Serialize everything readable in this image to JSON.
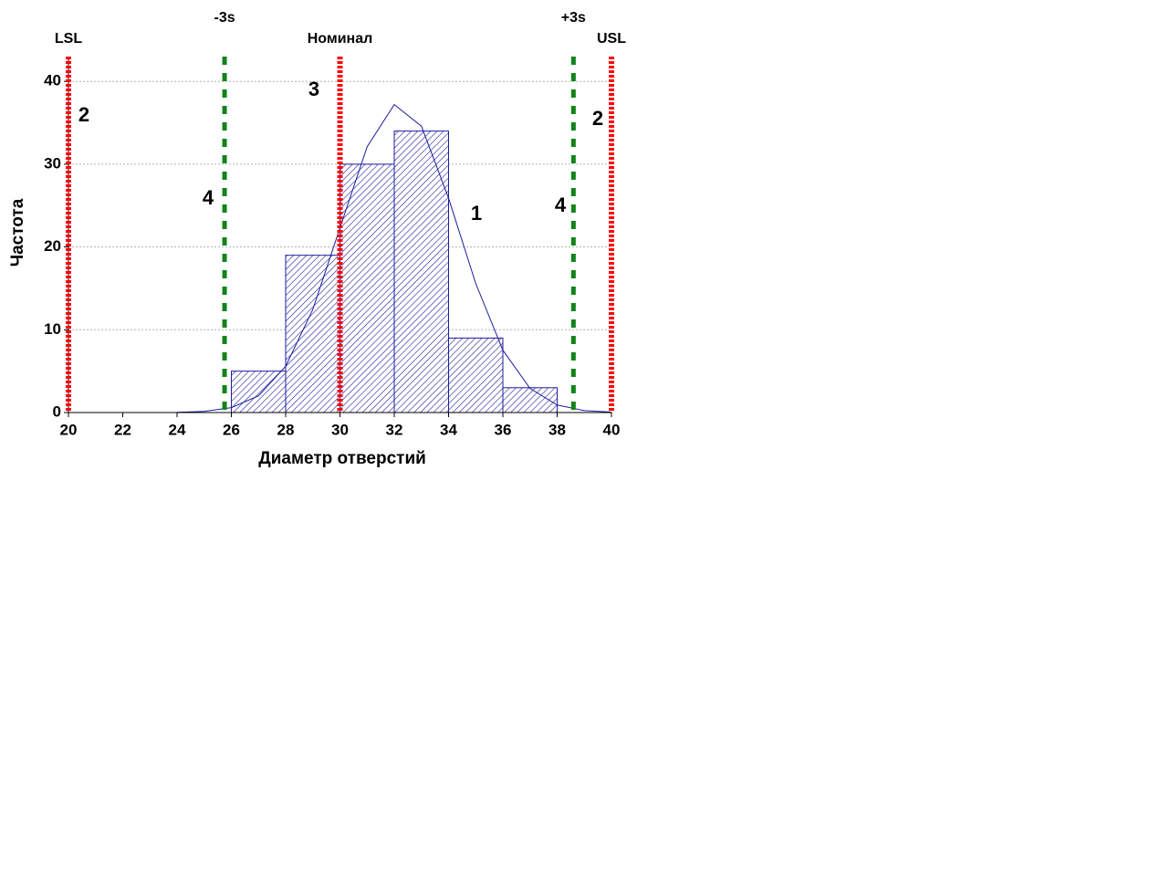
{
  "chart_data": {
    "type": "histogram",
    "x_label": "Диаметр отверстий",
    "y_label": "Частота",
    "bins": [
      26,
      28,
      30,
      32,
      34,
      36,
      38
    ],
    "values": [
      5,
      19,
      30,
      34,
      9,
      3
    ],
    "color": "#1c1c9c",
    "curve": {
      "x": [
        24,
        25,
        26,
        27,
        28,
        29,
        30,
        31,
        32,
        33,
        34,
        35,
        36,
        37,
        38,
        39,
        40
      ],
      "values": [
        0.03,
        0.14,
        0.59,
        2.01,
        5.59,
        12.45,
        22.3,
        32.1,
        37.2,
        34.6,
        25.9,
        15.6,
        7.53,
        2.92,
        0.91,
        0.23,
        0.05
      ],
      "color": "#1c1c9c"
    },
    "reference_lines": [
      {
        "label": "LSL",
        "x": 20,
        "color": "#ff0000"
      },
      {
        "label": "-3s",
        "x": 25.75,
        "color": "#13831b"
      },
      {
        "label": "Номинал",
        "x": 30,
        "color": "#ff0000"
      },
      {
        "label": "+3s",
        "x": 38.6,
        "color": "#13831b"
      },
      {
        "label": "USL",
        "x": 40,
        "color": "#ff0000"
      }
    ],
    "annotations": [
      "2",
      "2",
      "3",
      "4",
      "4",
      "1"
    ],
    "xlim": [
      20,
      40
    ],
    "xticks": [
      20,
      22,
      24,
      26,
      28,
      30,
      32,
      34,
      36,
      38,
      40
    ],
    "ylim": [
      0,
      43
    ],
    "yticks": [
      0,
      10,
      20,
      30,
      40
    ],
    "grid": true
  }
}
